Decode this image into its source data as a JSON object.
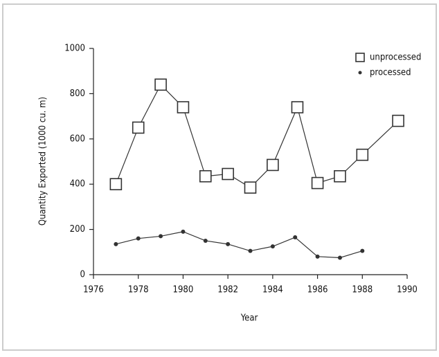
{
  "chart_data": {
    "type": "line",
    "xlabel": "Year",
    "ylabel": "Quantity Exported (1000 cu. m)",
    "xlim": [
      1976,
      1990
    ],
    "xticks": [
      1976,
      1978,
      1980,
      1982,
      1984,
      1986,
      1988,
      1990
    ],
    "ylim": [
      0,
      1000
    ],
    "yticks": [
      0,
      200,
      400,
      600,
      800,
      1000
    ],
    "legend": "upper right",
    "series": [
      {
        "name": "unprocessed",
        "color": "#333333",
        "marker": "square",
        "x": [
          1977,
          1978,
          1979,
          1980,
          1981,
          1982,
          1983,
          1984,
          1985.1,
          1986,
          1987,
          1988,
          1989.6
        ],
        "values": [
          400,
          650,
          840,
          740,
          435,
          445,
          385,
          485,
          740,
          405,
          435,
          530,
          680
        ]
      },
      {
        "name": "processed",
        "color": "#333333",
        "marker": "dot",
        "x": [
          1977,
          1978,
          1979,
          1980,
          1981,
          1982,
          1983,
          1984,
          1985,
          1986,
          1987,
          1988
        ],
        "values": [
          135,
          160,
          170,
          190,
          150,
          135,
          105,
          125,
          165,
          80,
          75,
          105
        ]
      }
    ]
  }
}
